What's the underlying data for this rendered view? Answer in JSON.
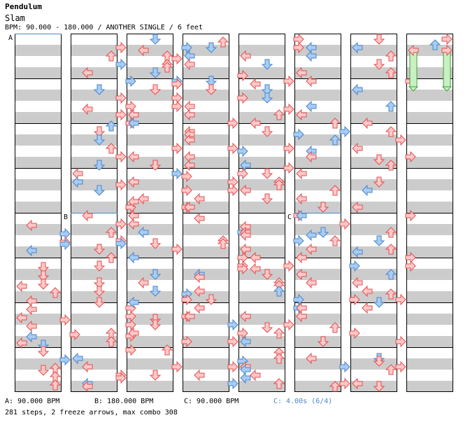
{
  "header": {
    "artist": "Pendulum",
    "title": "Slam",
    "meta": "BPM: 90.000 - 180.000 / ANOTHER SINGLE / 6 feet"
  },
  "colors": {
    "red_fill": "#ffc8c8",
    "red_stroke": "#e05050",
    "blue_fill": "#a8ccf4",
    "blue_stroke": "#4a86c8",
    "stripe": "#cccccc",
    "freeze_fill": "#c8f0c0",
    "freeze_stroke": "#40a040",
    "bpm_line": "#4a86c8",
    "stop_text": "#4a86c8"
  },
  "section_labels": [
    "A",
    "B",
    "C"
  ],
  "footer": {
    "bpm_a": "A: 90.000 BPM",
    "bpm_b": "B: 180.000 BPM",
    "bpm_c": "C: 90.000 BPM",
    "stop_c": "C: 4.00s (6/4)",
    "stats": "281 steps, 2 freeze arrows, max combo 308"
  },
  "icons": {
    "left": "left-arrow-icon",
    "down": "down-arrow-icon",
    "up": "up-arrow-icon",
    "right": "right-arrow-icon",
    "freeze": "freeze-arrow-icon"
  }
}
